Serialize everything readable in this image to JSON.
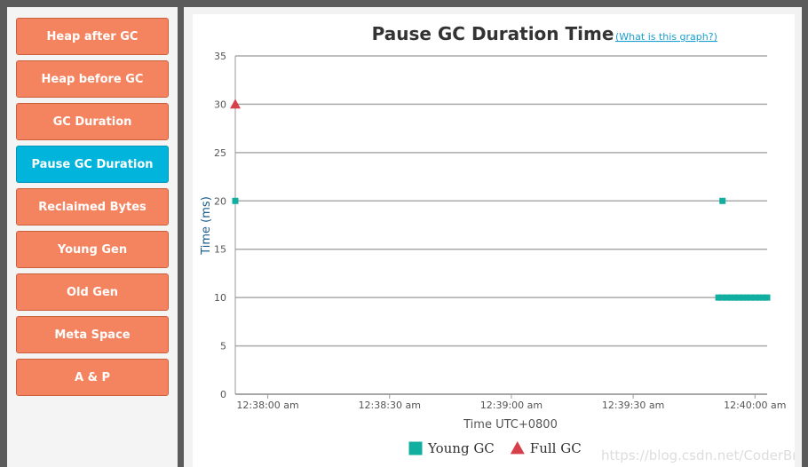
{
  "sidebar": {
    "items": [
      "Heap after GC",
      "Heap before GC",
      "GC Duration",
      "Pause GC Duration",
      "Reclaimed Bytes",
      "Young Gen",
      "Old Gen",
      "Meta Space",
      "A & P"
    ],
    "active": 3
  },
  "help_link": "(What is this graph?)",
  "watermark": "https://blog.csdn.net/CoderBruis",
  "chart_data": {
    "type": "scatter",
    "title": "Pause GC Duration Time",
    "x_label": "Time UTC+0800",
    "y_label": "Time (ms)",
    "xlim": [
      "12:37:52 am",
      "12:40:03 am"
    ],
    "xticks": [
      "12:38:00 am",
      "12:38:30 am",
      "12:39:00 am",
      "12:39:30 am",
      "12:40:00 am"
    ],
    "ylim": [
      0,
      35
    ],
    "yticks": [
      0,
      5,
      10,
      15,
      20,
      25,
      30,
      35
    ],
    "grid": true,
    "series": [
      {
        "name": "Young GC",
        "color": "#12aea0",
        "marker": "square",
        "x": [
          "12:37:52 am",
          "12:39:52 am",
          "12:39:51 am",
          "12:39:52 am",
          "12:39:53 am",
          "12:39:54 am",
          "12:39:55 am",
          "12:39:56 am",
          "12:39:57 am",
          "12:39:58 am",
          "12:39:59 am",
          "12:40:00 am",
          "12:40:01 am",
          "12:40:02 am",
          "12:40:03 am"
        ],
        "values": [
          20,
          20,
          10,
          10,
          10,
          10,
          10,
          10,
          10,
          10,
          10,
          10,
          10,
          10,
          10
        ]
      },
      {
        "name": "Full GC",
        "color": "#d6404a",
        "marker": "triangle",
        "x": [
          "12:37:52 am"
        ],
        "values": [
          30
        ]
      }
    ]
  }
}
